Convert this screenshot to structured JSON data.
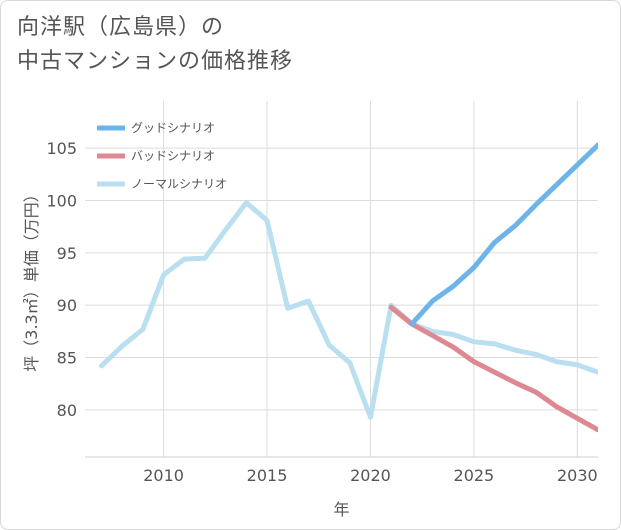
{
  "title_lines": [
    "向洋駅（広島県）の",
    "中古マンションの価格推移"
  ],
  "chart_data": {
    "type": "line",
    "title": "向洋駅（広島県）の中古マンションの価格推移",
    "xlabel": "年",
    "ylabel": "坪（3.3㎡）単価（万円）",
    "xlim": [
      2006.2,
      2031
    ],
    "ylim": [
      75.5,
      109.5
    ],
    "x_ticks": [
      2010,
      2015,
      2020,
      2025,
      2030
    ],
    "y_ticks": [
      80,
      85,
      90,
      95,
      100,
      105
    ],
    "grid": true,
    "legend_position": "top-left",
    "series": [
      {
        "name": "グッドシナリオ",
        "color": "#6cb4ea",
        "x": [
          2022,
          2023,
          2024,
          2025,
          2026,
          2027,
          2028,
          2029,
          2030,
          2031
        ],
        "values": [
          88.2,
          90.4,
          91.8,
          93.6,
          96.0,
          97.6,
          99.6,
          101.5,
          103.4,
          105.3
        ]
      },
      {
        "name": "バッドシナリオ",
        "color": "#de8891",
        "x": [
          2021,
          2022,
          2023,
          2024,
          2025,
          2026,
          2027,
          2028,
          2029,
          2030,
          2031
        ],
        "values": [
          89.8,
          88.2,
          87.1,
          86.0,
          84.6,
          83.6,
          82.6,
          81.7,
          80.3,
          79.2,
          78.1
        ]
      },
      {
        "name": "ノーマルシナリオ",
        "color": "#badff0",
        "x": [
          2007,
          2008,
          2009,
          2010,
          2011,
          2012,
          2013,
          2014,
          2015,
          2016,
          2017,
          2018,
          2019,
          2020,
          2021,
          2022,
          2023,
          2024,
          2025,
          2026,
          2027,
          2028,
          2029,
          2030,
          2031
        ],
        "values": [
          84.2,
          86.1,
          87.7,
          92.9,
          94.4,
          94.5,
          97.2,
          99.8,
          98.1,
          89.7,
          90.4,
          86.2,
          84.5,
          79.3,
          90.0,
          88.2,
          87.5,
          87.2,
          86.5,
          86.3,
          85.7,
          85.3,
          84.6,
          84.3,
          83.6
        ]
      }
    ]
  }
}
